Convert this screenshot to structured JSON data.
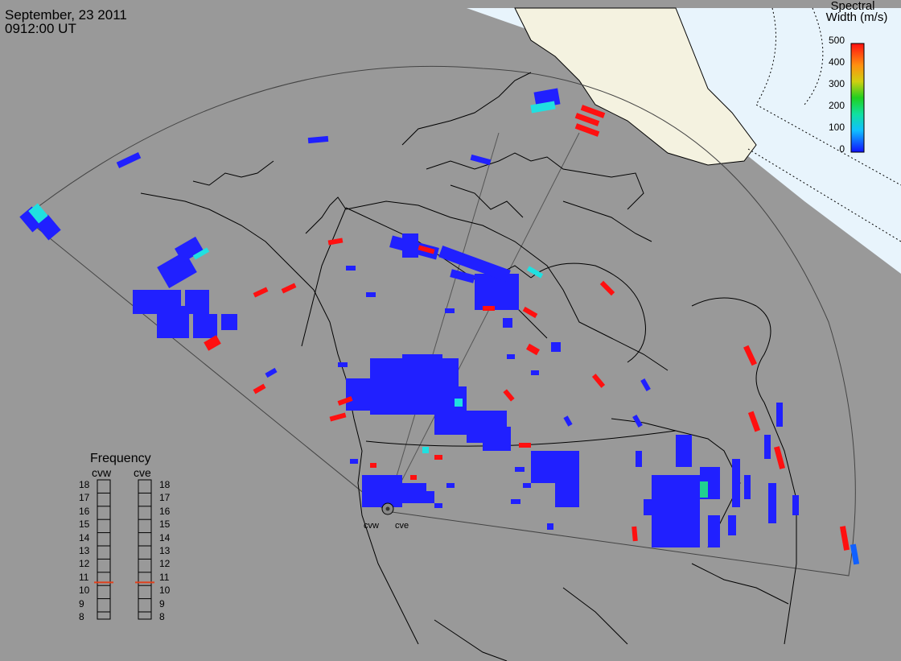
{
  "header": {
    "date": "September, 23 2011",
    "time": "0912:00 UT"
  },
  "colorbar": {
    "title_line1": "Spectral",
    "title_line2": "Width (m/s)",
    "ticks": [
      "500",
      "400",
      "300",
      "200",
      "100",
      "0"
    ]
  },
  "frequency": {
    "title": "Frequency",
    "radar1": "cvw",
    "radar2": "cve",
    "levels": [
      "18",
      "17",
      "16",
      "15",
      "14",
      "13",
      "12",
      "11",
      "10",
      "9",
      "8"
    ],
    "cvw_value": 10.6,
    "cve_value": 10.6
  },
  "radars": {
    "west": "cvw",
    "east": "cve"
  },
  "colors": {
    "background": "#999999",
    "ocean": "#e8f4fc",
    "greenland": "#f4f2e0",
    "low": "#2020ff",
    "mid": "#20e0e0",
    "high": "#ff1010",
    "marker": "#e0401c"
  }
}
